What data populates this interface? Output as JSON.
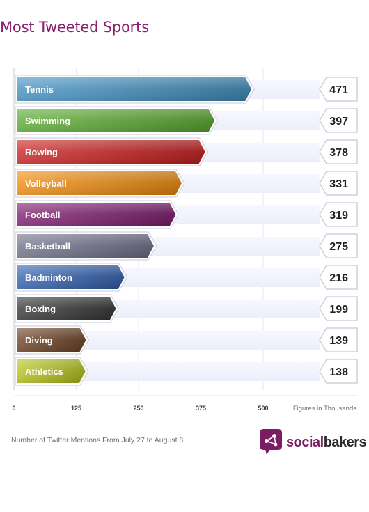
{
  "title": "Most Tweeted Sports",
  "footnote": "Number of Twitter Mentions From July 27 to August 8",
  "brand": {
    "part1": "social",
    "part2": "bakers"
  },
  "chart_data": {
    "type": "bar",
    "orientation": "horizontal",
    "categories": [
      "Tennis",
      "Swimming",
      "Rowing",
      "Volleyball",
      "Football",
      "Basketball",
      "Badminton",
      "Boxing",
      "Diving",
      "Athletics"
    ],
    "values": [
      471,
      397,
      378,
      331,
      319,
      275,
      216,
      199,
      139,
      138
    ],
    "colors": [
      "#3f8fbf",
      "#5aaa30",
      "#c81e1e",
      "#f08a0a",
      "#7e1a6e",
      "#70708a",
      "#2f5fae",
      "#333333",
      "#6b4022",
      "#b5c21a"
    ],
    "xlim": [
      0,
      500
    ],
    "xticks": [
      "0",
      "125",
      "250",
      "375",
      "500"
    ],
    "xlabel": "Figures in Thousands",
    "grid": true
  }
}
